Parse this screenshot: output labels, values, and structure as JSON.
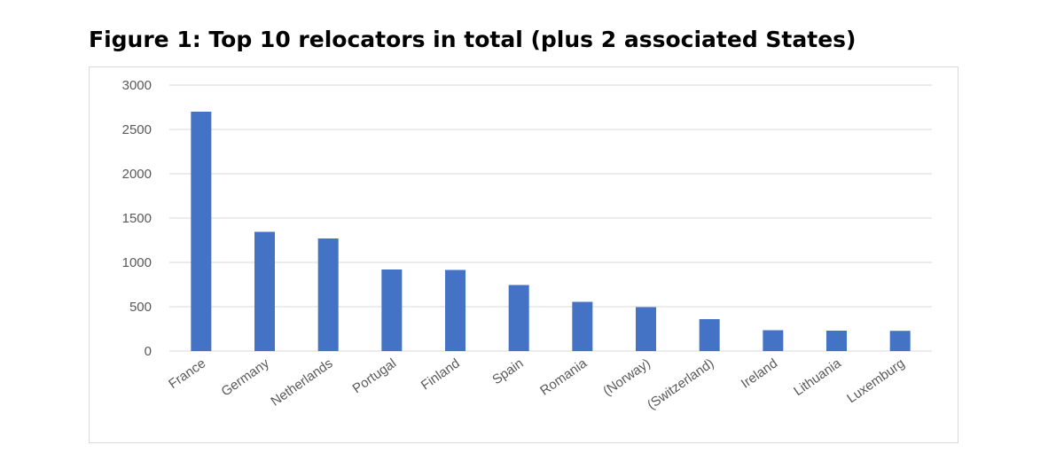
{
  "figure_title": "Figure 1: Top 10 relocators in total (plus 2 associated States)",
  "colors": {
    "bar": "#4472C4",
    "grid": "#d9d9d9",
    "tick_text": "#595959"
  },
  "chart_data": {
    "type": "bar",
    "title": "Figure 1: Top 10 relocators in total (plus 2 associated States)",
    "xlabel": "",
    "ylabel": "",
    "categories": [
      "France",
      "Germany",
      "Netherlands",
      "Portugal",
      "Finland",
      "Spain",
      "Romania",
      "(Norway)",
      "(Switzerland)",
      "Ireland",
      "Lithuania",
      "Luxemburg"
    ],
    "values": [
      2700,
      1345,
      1270,
      920,
      915,
      745,
      555,
      495,
      360,
      235,
      230,
      228
    ],
    "ylim": [
      0,
      3000
    ],
    "yticks": [
      0,
      500,
      1000,
      1500,
      2000,
      2500,
      3000
    ],
    "grid": true,
    "legend": "none"
  }
}
